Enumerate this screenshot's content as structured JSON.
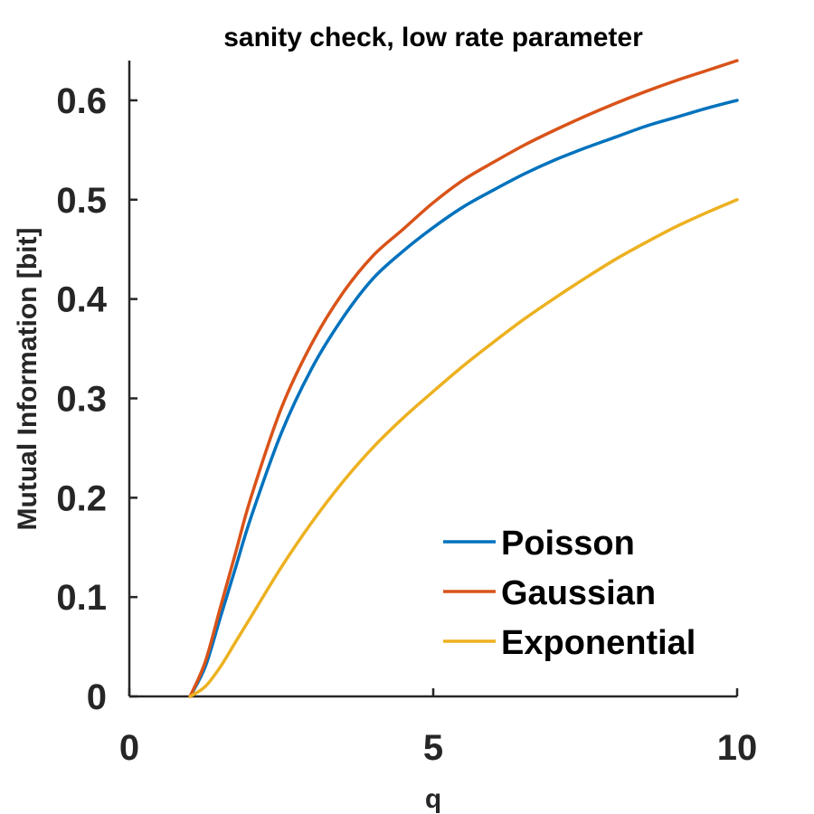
{
  "chart_data": {
    "type": "line",
    "title": "sanity check, low rate parameter",
    "xlabel": "q",
    "ylabel": "Mutual Information [bit]",
    "xlim": [
      0,
      10
    ],
    "ylim": [
      0,
      0.64
    ],
    "xticks": [
      0,
      5,
      10
    ],
    "yticks": [
      0,
      0.1,
      0.2,
      0.3,
      0.4,
      0.5,
      0.6
    ],
    "grid": false,
    "legend_position": "bottom-right",
    "series": [
      {
        "name": "Poisson",
        "color": "#0072BD",
        "x": [
          1,
          1.25,
          1.5,
          1.75,
          2,
          2.5,
          3,
          3.5,
          4,
          4.5,
          5,
          5.5,
          6,
          6.5,
          7,
          7.5,
          8,
          8.5,
          9,
          9.5,
          10
        ],
        "y": [
          0,
          0.03,
          0.08,
          0.13,
          0.18,
          0.265,
          0.33,
          0.38,
          0.42,
          0.448,
          0.472,
          0.493,
          0.51,
          0.526,
          0.54,
          0.552,
          0.563,
          0.574,
          0.583,
          0.592,
          0.6
        ]
      },
      {
        "name": "Gaussian",
        "color": "#D95319",
        "x": [
          1,
          1.25,
          1.5,
          1.75,
          2,
          2.5,
          3,
          3.5,
          4,
          4.5,
          5,
          5.5,
          6,
          6.5,
          7,
          7.5,
          8,
          8.5,
          9,
          9.5,
          10
        ],
        "y": [
          0,
          0.035,
          0.09,
          0.145,
          0.2,
          0.29,
          0.355,
          0.405,
          0.443,
          0.47,
          0.497,
          0.52,
          0.538,
          0.555,
          0.57,
          0.584,
          0.597,
          0.609,
          0.62,
          0.63,
          0.64
        ]
      },
      {
        "name": "Exponential",
        "color": "#EDB120",
        "x": [
          1,
          1.25,
          1.5,
          1.75,
          2,
          2.5,
          3,
          3.5,
          4,
          4.5,
          5,
          5.5,
          6,
          6.5,
          7,
          7.5,
          8,
          8.5,
          9,
          9.5,
          10
        ],
        "y": [
          0,
          0.01,
          0.03,
          0.055,
          0.08,
          0.13,
          0.175,
          0.215,
          0.25,
          0.28,
          0.307,
          0.333,
          0.357,
          0.38,
          0.401,
          0.421,
          0.44,
          0.457,
          0.473,
          0.487,
          0.5
        ]
      }
    ]
  }
}
